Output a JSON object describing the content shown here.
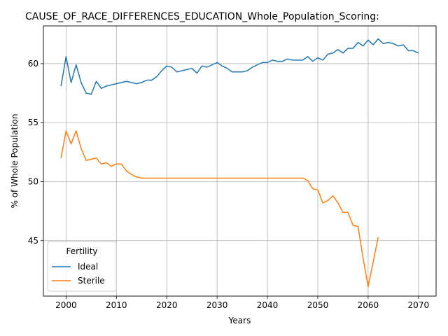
{
  "chart_data": {
    "type": "line",
    "title": "CAUSE_OF_RACE_DIFFERENCES_EDUCATION_Whole_Population_Scoring:",
    "xlabel": "Years",
    "ylabel": "% of Whole Population",
    "xlim": [
      1995.5,
      2073.5
    ],
    "ylim": [
      40.3,
      63.2
    ],
    "xticks": [
      2000,
      2010,
      2020,
      2030,
      2040,
      2050,
      2060,
      2070
    ],
    "yticks": [
      45,
      50,
      55,
      60
    ],
    "grid": true,
    "legend": {
      "title": "Fertility",
      "placement": "lower-left"
    },
    "series": [
      {
        "name": "Ideal",
        "color": "#1f77b4",
        "x": [
          1999,
          2000,
          2001,
          2002,
          2003,
          2004,
          2005,
          2006,
          2007,
          2008,
          2009,
          2010,
          2011,
          2012,
          2013,
          2014,
          2015,
          2016,
          2017,
          2018,
          2019,
          2020,
          2021,
          2022,
          2023,
          2024,
          2025,
          2026,
          2027,
          2028,
          2029,
          2030,
          2031,
          2032,
          2033,
          2034,
          2035,
          2036,
          2037,
          2038,
          2039,
          2040,
          2041,
          2042,
          2043,
          2044,
          2045,
          2046,
          2047,
          2048,
          2049,
          2050,
          2051,
          2052,
          2053,
          2054,
          2055,
          2056,
          2057,
          2058,
          2059,
          2060,
          2061,
          2062,
          2063,
          2064,
          2065,
          2066,
          2067,
          2068,
          2069,
          2070
        ],
        "values": [
          58.1,
          60.6,
          58.4,
          59.9,
          58.4,
          57.5,
          57.4,
          58.5,
          57.9,
          58.1,
          58.2,
          58.3,
          58.4,
          58.5,
          58.4,
          58.3,
          58.4,
          58.6,
          58.6,
          58.9,
          59.4,
          59.8,
          59.7,
          59.3,
          59.4,
          59.5,
          59.6,
          59.2,
          59.8,
          59.7,
          59.9,
          60.1,
          59.8,
          59.6,
          59.3,
          59.3,
          59.3,
          59.4,
          59.7,
          59.9,
          60.1,
          60.1,
          60.3,
          60.2,
          60.2,
          60.4,
          60.3,
          60.3,
          60.3,
          60.6,
          60.2,
          60.5,
          60.3,
          60.8,
          60.9,
          61.2,
          60.9,
          61.3,
          61.3,
          61.8,
          61.5,
          62.0,
          61.6,
          62.1,
          61.7,
          61.8,
          61.7,
          61.5,
          61.6,
          61.1,
          61.1,
          60.9
        ]
      },
      {
        "name": "Sterile",
        "color": "#ff7f0e",
        "x": [
          1999,
          2000,
          2001,
          2002,
          2003,
          2004,
          2005,
          2006,
          2007,
          2008,
          2009,
          2010,
          2011,
          2012,
          2013,
          2014,
          2015,
          2016,
          2017,
          2018,
          2019,
          2020,
          2021,
          2022,
          2023,
          2024,
          2025,
          2026,
          2027,
          2028,
          2029,
          2030,
          2031,
          2032,
          2033,
          2034,
          2035,
          2036,
          2037,
          2038,
          2039,
          2040,
          2041,
          2042,
          2043,
          2044,
          2045,
          2046,
          2047,
          2048,
          2049,
          2050,
          2051,
          2052,
          2053,
          2054,
          2055,
          2056,
          2057,
          2058,
          2059,
          2060,
          2061,
          2062
        ],
        "values": [
          52.0,
          54.3,
          53.2,
          54.3,
          52.8,
          51.8,
          51.9,
          52.0,
          51.5,
          51.6,
          51.3,
          51.5,
          51.5,
          50.9,
          50.6,
          50.4,
          50.3,
          50.3,
          50.3,
          50.3,
          50.3,
          50.3,
          50.3,
          50.3,
          50.3,
          50.3,
          50.3,
          50.3,
          50.3,
          50.3,
          50.3,
          50.3,
          50.3,
          50.3,
          50.3,
          50.3,
          50.3,
          50.3,
          50.3,
          50.3,
          50.3,
          50.3,
          50.3,
          50.3,
          50.3,
          50.3,
          50.3,
          50.3,
          50.3,
          50.1,
          49.4,
          49.3,
          48.2,
          48.4,
          48.8,
          48.2,
          47.4,
          47.4,
          46.3,
          46.2,
          43.5,
          41.1,
          43.2,
          45.3
        ]
      }
    ]
  }
}
